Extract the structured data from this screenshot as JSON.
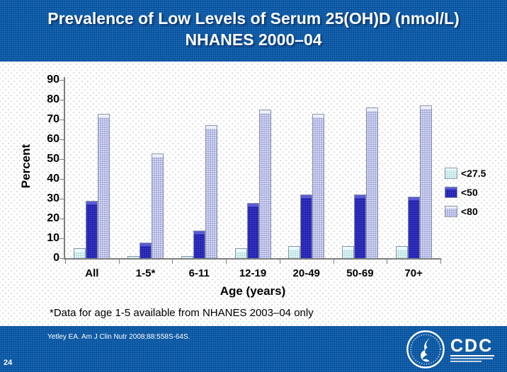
{
  "slide": {
    "title_line1": "Prevalence of Low Levels of Serum 25(OH)D (nmol/L)",
    "title_line2": "NHANES 2000–04",
    "footnote": "*Data for age 1-5 available from NHANES 2003–04 only",
    "citation": "Yetley EA. Am J Clin Nutr 2008;88:558S-64S.",
    "page_number": "24",
    "cdc_label": "CDC",
    "colors": {
      "band_blue": "#1567b4",
      "band_dot": "#063e80",
      "axis_gray": "#7d7d7d",
      "title_text": "#ffffff"
    }
  },
  "chart_data": {
    "type": "bar",
    "title": "Prevalence of Low Levels of Serum 25(OH)D (nmol/L) NHANES 2000–04",
    "categories": [
      "All",
      "1-5*",
      "6-11",
      "12-19",
      "20-49",
      "50-69",
      "70+"
    ],
    "series": [
      {
        "name": "<27.5",
        "values": [
          5,
          1,
          1,
          5,
          6,
          6,
          6
        ],
        "fill": "#b7e2e2",
        "dot": "rgba(255,255,255,0.9)",
        "cap": "#e9fbfb"
      },
      {
        "name": "<50",
        "values": [
          29,
          8,
          14,
          28,
          32,
          32,
          31
        ],
        "fill": "#1f1fae",
        "dot": "rgba(95,95,225,0.55)",
        "cap": "#5b5bd6"
      },
      {
        "name": "<80",
        "values": [
          73,
          53,
          67,
          75,
          73,
          76,
          77
        ],
        "fill": "#a2a8dd",
        "dot": "rgba(255,255,255,0.85)",
        "cap": "#edeffc"
      }
    ],
    "xlabel": "Age (years)",
    "ylabel": "Percent",
    "ylim": [
      0,
      90
    ],
    "yticks": [
      0,
      10,
      20,
      30,
      40,
      50,
      60,
      70,
      80,
      90
    ],
    "grid": false,
    "legend_position": "right"
  }
}
